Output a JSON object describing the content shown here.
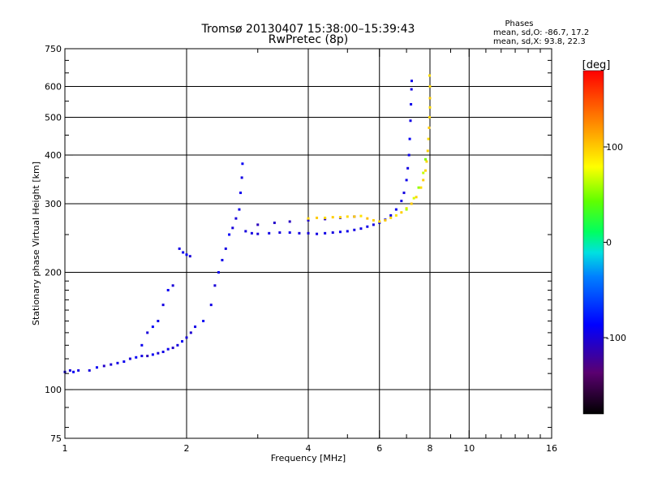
{
  "header": {
    "title_line1": "Tromsø 20130407 15:38:00–15:39:43",
    "title_line2": "RwPretec (8p)",
    "phases_heading": "Phases",
    "phases_o": "mean, sd,O: -86.7, 17.2",
    "phases_x": "mean, sd,X:  93.8, 22.3"
  },
  "colorbar": {
    "unit_label": "[deg]",
    "min": -180,
    "max": 180,
    "tick_labels": [
      "100",
      "0",
      "-100"
    ],
    "tick_values": [
      100,
      0,
      -100
    ]
  },
  "chart_data": {
    "type": "scatter",
    "xlabel": "Frequency [MHz]",
    "ylabel": "Stationary phase Virtual Height [km]",
    "x_scale": "log",
    "y_scale": "log",
    "xlim": [
      1,
      16
    ],
    "ylim": [
      75,
      750
    ],
    "x_ticks": [
      1,
      2,
      4,
      6,
      8,
      10,
      16
    ],
    "x_tick_labels": [
      "1",
      "2",
      "4",
      "6",
      "8",
      "10",
      "16"
    ],
    "x_minor_ticks": [
      3,
      5,
      7,
      9,
      11,
      12,
      13,
      14,
      15
    ],
    "y_ticks": [
      75,
      100,
      200,
      300,
      400,
      500,
      600,
      750
    ],
    "y_tick_labels": [
      "75",
      "100",
      "200",
      "300",
      "400",
      "500",
      "600",
      "750"
    ],
    "y_minor_ticks": [
      80,
      90,
      110,
      120,
      130,
      140,
      150,
      160,
      170,
      180,
      190,
      250,
      350,
      450,
      550,
      650,
      700
    ],
    "x_grid_lines": [
      2,
      4,
      6,
      8,
      10
    ],
    "y_grid_lines": [
      100,
      200,
      300,
      400,
      500,
      600
    ],
    "color_encoding": "phase [deg]",
    "series": [
      {
        "mode": "O",
        "phase_mean": -86.7,
        "points": [
          [
            1.0,
            111,
            -95
          ],
          [
            1.03,
            112,
            -100
          ],
          [
            1.05,
            111,
            -90
          ],
          [
            1.08,
            112,
            -95
          ],
          [
            1.15,
            112,
            -98
          ],
          [
            1.2,
            114,
            -90
          ],
          [
            1.25,
            115,
            -105
          ],
          [
            1.3,
            116,
            -100
          ],
          [
            1.35,
            117,
            -95
          ],
          [
            1.4,
            118,
            -92
          ],
          [
            1.45,
            120,
            -100
          ],
          [
            1.5,
            121,
            -88
          ],
          [
            1.55,
            122,
            -96
          ],
          [
            1.6,
            122,
            -110
          ],
          [
            1.65,
            123,
            -90
          ],
          [
            1.7,
            124,
            -100
          ],
          [
            1.75,
            125,
            -95
          ],
          [
            1.8,
            127,
            -92
          ],
          [
            1.85,
            128,
            -105
          ],
          [
            1.9,
            130,
            -97
          ],
          [
            1.95,
            133,
            -90
          ],
          [
            2.0,
            136,
            -98
          ],
          [
            2.05,
            140,
            -102
          ],
          [
            2.1,
            145,
            -95
          ],
          [
            1.55,
            130,
            -92
          ],
          [
            1.6,
            140,
            -99
          ],
          [
            1.65,
            145,
            -88
          ],
          [
            1.7,
            150,
            -94
          ],
          [
            1.75,
            165,
            -96
          ],
          [
            1.8,
            180,
            -90
          ],
          [
            1.85,
            185,
            -100
          ],
          [
            1.92,
            230,
            -95
          ],
          [
            1.96,
            225,
            -92
          ],
          [
            2.0,
            222,
            -88
          ],
          [
            2.04,
            220,
            -100
          ],
          [
            2.2,
            150,
            -90
          ],
          [
            2.3,
            165,
            -95
          ],
          [
            2.35,
            185,
            -100
          ],
          [
            2.4,
            200,
            -92
          ],
          [
            2.45,
            215,
            -94
          ],
          [
            2.5,
            230,
            -96
          ],
          [
            2.55,
            250,
            -88
          ],
          [
            2.6,
            260,
            -98
          ],
          [
            2.65,
            275,
            -100
          ],
          [
            2.7,
            290,
            -94
          ],
          [
            2.72,
            320,
            -92
          ],
          [
            2.74,
            350,
            -96
          ],
          [
            2.75,
            380,
            -90
          ],
          [
            2.8,
            255,
            -98
          ],
          [
            2.9,
            252,
            -96
          ],
          [
            3.0,
            251,
            -100
          ],
          [
            3.2,
            252,
            -95
          ],
          [
            3.4,
            253,
            -98
          ],
          [
            3.6,
            253,
            -94
          ],
          [
            3.8,
            252,
            -97
          ],
          [
            4.0,
            252,
            -99
          ],
          [
            4.2,
            251,
            -96
          ],
          [
            4.4,
            252,
            -95
          ],
          [
            4.6,
            253,
            -97
          ],
          [
            4.8,
            254,
            -92
          ],
          [
            5.0,
            255,
            -94
          ],
          [
            5.2,
            257,
            -96
          ],
          [
            5.4,
            259,
            -95
          ],
          [
            5.6,
            262,
            -93
          ],
          [
            5.8,
            265,
            -97
          ],
          [
            6.0,
            268,
            -95
          ],
          [
            6.2,
            273,
            -96
          ],
          [
            6.4,
            280,
            -94
          ],
          [
            6.6,
            290,
            -92
          ],
          [
            6.8,
            305,
            -95
          ],
          [
            6.9,
            320,
            -97
          ],
          [
            7.0,
            345,
            -93
          ],
          [
            7.05,
            370,
            -96
          ],
          [
            7.1,
            400,
            -92
          ],
          [
            7.13,
            440,
            -90
          ],
          [
            7.16,
            490,
            -95
          ],
          [
            7.18,
            540,
            -93
          ],
          [
            7.2,
            590,
            -96
          ],
          [
            7.21,
            620,
            -94
          ],
          [
            3.0,
            265,
            -110
          ],
          [
            3.3,
            268,
            -105
          ],
          [
            3.6,
            270,
            -108
          ],
          [
            4.0,
            272,
            -104
          ],
          [
            4.4,
            274,
            -110
          ],
          [
            4.8,
            276,
            -106
          ],
          [
            5.2,
            278,
            -108
          ]
        ]
      },
      {
        "mode": "X",
        "phase_mean": 93.8,
        "points": [
          [
            4.0,
            275,
            95
          ],
          [
            4.2,
            276,
            100
          ],
          [
            4.4,
            276,
            92
          ],
          [
            4.6,
            277,
            98
          ],
          [
            4.8,
            277,
            96
          ],
          [
            5.0,
            278,
            94
          ],
          [
            5.2,
            278,
            100
          ],
          [
            5.4,
            279,
            90
          ],
          [
            5.6,
            275,
            105
          ],
          [
            5.8,
            272,
            98
          ],
          [
            6.0,
            270,
            92
          ],
          [
            6.2,
            272,
            100
          ],
          [
            6.4,
            276,
            95
          ],
          [
            6.6,
            280,
            90
          ],
          [
            6.8,
            285,
            98
          ],
          [
            7.0,
            292,
            94
          ],
          [
            7.2,
            300,
            100
          ],
          [
            7.4,
            312,
            96
          ],
          [
            7.6,
            330,
            92
          ],
          [
            7.7,
            345,
            98
          ],
          [
            7.8,
            365,
            95
          ],
          [
            7.85,
            385,
            94
          ],
          [
            7.9,
            410,
            97
          ],
          [
            7.93,
            440,
            92
          ],
          [
            7.96,
            470,
            100
          ],
          [
            7.98,
            500,
            96
          ],
          [
            8.0,
            530,
            94
          ],
          [
            8.0,
            560,
            98
          ],
          [
            8.0,
            600,
            95
          ],
          [
            7.98,
            640,
            92
          ],
          [
            7.0,
            290,
            60
          ],
          [
            7.3,
            310,
            70
          ],
          [
            7.5,
            330,
            55
          ],
          [
            7.7,
            360,
            65
          ],
          [
            7.8,
            390,
            50
          ]
        ]
      }
    ]
  }
}
